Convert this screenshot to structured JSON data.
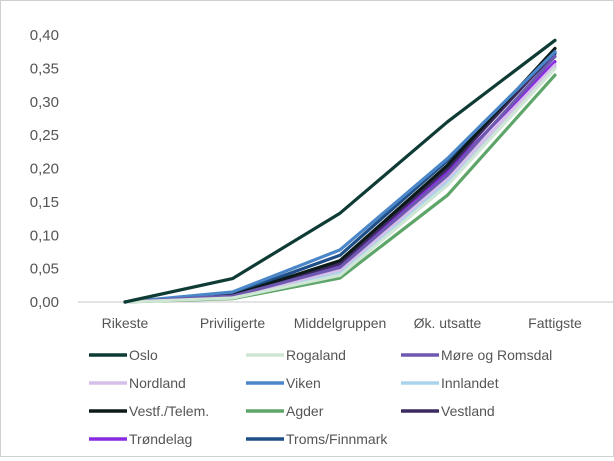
{
  "chart_data": {
    "type": "line",
    "categories": [
      "Rikeste",
      "Priviligerte",
      "Middelgruppen",
      "Øk. utsatte",
      "Fattigste"
    ],
    "y_ticks": [
      "0,00",
      "0,05",
      "0,10",
      "0,15",
      "0,20",
      "0,25",
      "0,30",
      "0,35",
      "0,40"
    ],
    "ylim": [
      0,
      0.4
    ],
    "grid": false,
    "legend_position": "bottom",
    "series": [
      {
        "name": "Oslo",
        "color": "#0f3b35",
        "values": [
          0.0,
          0.035,
          0.133,
          0.27,
          0.392
        ]
      },
      {
        "name": "Rogaland",
        "color": "#cfe6d4",
        "values": [
          0.0,
          0.006,
          0.04,
          0.175,
          0.35
        ]
      },
      {
        "name": "Møre og Romsdal",
        "color": "#6e58b0",
        "values": [
          0.0,
          0.009,
          0.052,
          0.19,
          0.368
        ]
      },
      {
        "name": "Nordland",
        "color": "#d6bfe8",
        "values": [
          0.0,
          0.008,
          0.048,
          0.185,
          0.355
        ]
      },
      {
        "name": "Viken",
        "color": "#4a86c8",
        "values": [
          0.0,
          0.015,
          0.078,
          0.215,
          0.375
        ]
      },
      {
        "name": "Innlandet",
        "color": "#a9d4ee",
        "values": [
          0.0,
          0.008,
          0.045,
          0.18,
          0.352
        ]
      },
      {
        "name": "Vestf./Telem.",
        "color": "#0d1a1a",
        "values": [
          0.0,
          0.01,
          0.062,
          0.205,
          0.38
        ]
      },
      {
        "name": "Agder",
        "color": "#5ea569",
        "values": [
          0.0,
          0.005,
          0.036,
          0.16,
          0.34
        ]
      },
      {
        "name": "Vestland",
        "color": "#3a2a5e",
        "values": [
          0.0,
          0.01,
          0.058,
          0.2,
          0.375
        ]
      },
      {
        "name": "Trøndelag",
        "color": "#8a2be2",
        "values": [
          0.0,
          0.01,
          0.055,
          0.195,
          0.36
        ]
      },
      {
        "name": "Troms/Finnmark",
        "color": "#1f4f88",
        "values": [
          0.0,
          0.012,
          0.07,
          0.212,
          0.372
        ]
      }
    ]
  }
}
